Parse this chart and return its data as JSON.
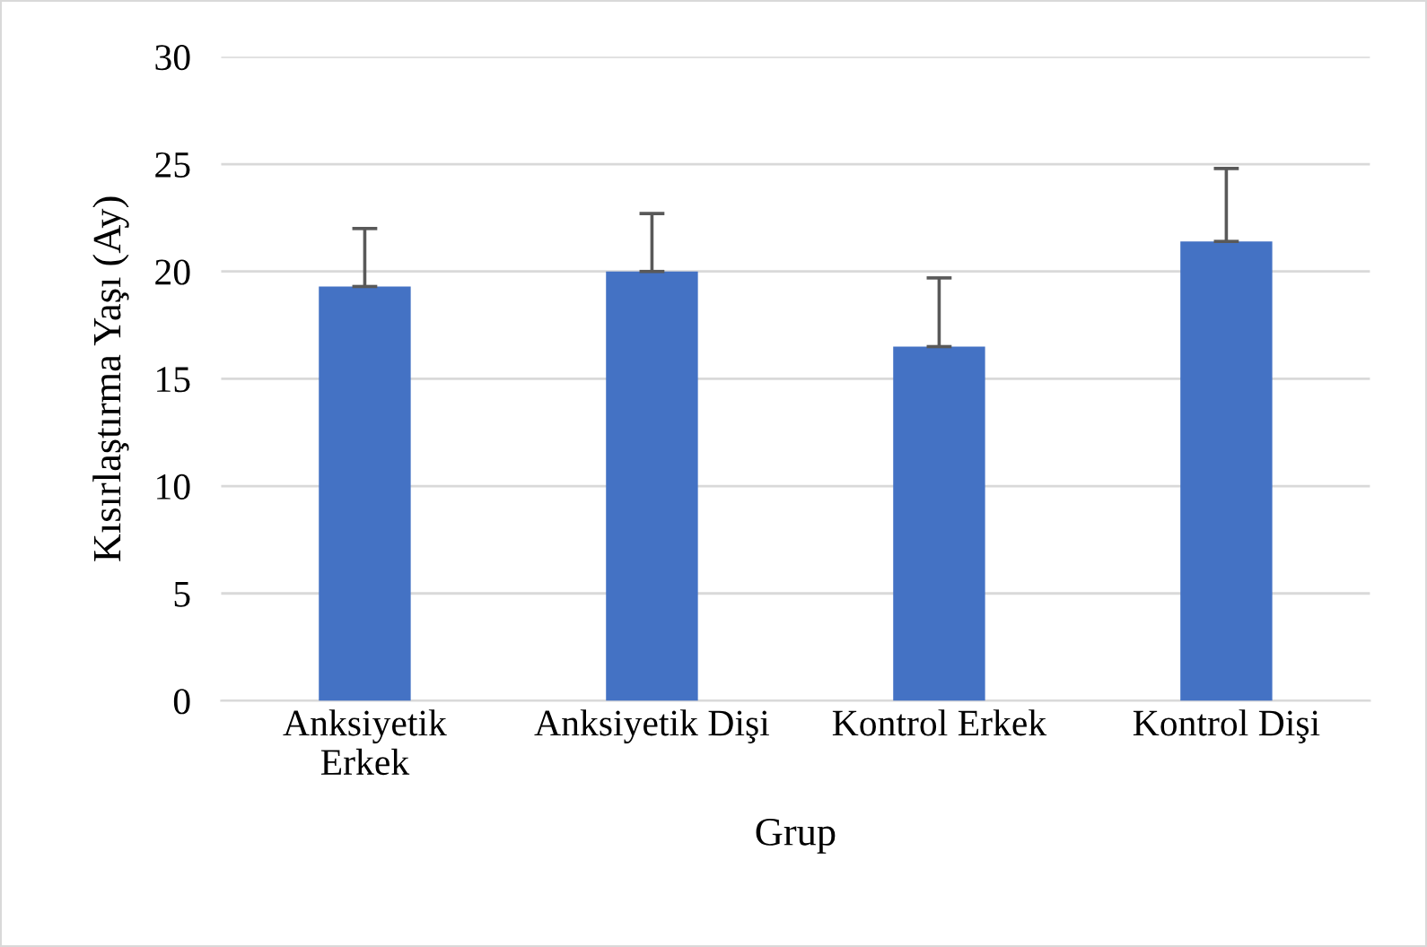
{
  "chart_data": {
    "type": "bar",
    "xlabel": "Grup",
    "ylabel": "Kısırlaştırma Yaşı (Ay)",
    "categories": [
      "Anksiyetik\nErkek",
      "Anksiyetik Dişi",
      "Kontrol Erkek",
      "Kontrol Dişi"
    ],
    "values": [
      19.3,
      20.0,
      16.5,
      21.4
    ],
    "errors": [
      [
        19.3,
        22.0
      ],
      [
        20.0,
        22.7
      ],
      [
        16.5,
        19.7
      ],
      [
        21.4,
        24.8
      ]
    ],
    "color": "#4472c4",
    "ylim": [
      0,
      30
    ],
    "yticks": [
      0,
      5,
      10,
      15,
      20,
      25,
      30
    ],
    "grid": "y"
  }
}
